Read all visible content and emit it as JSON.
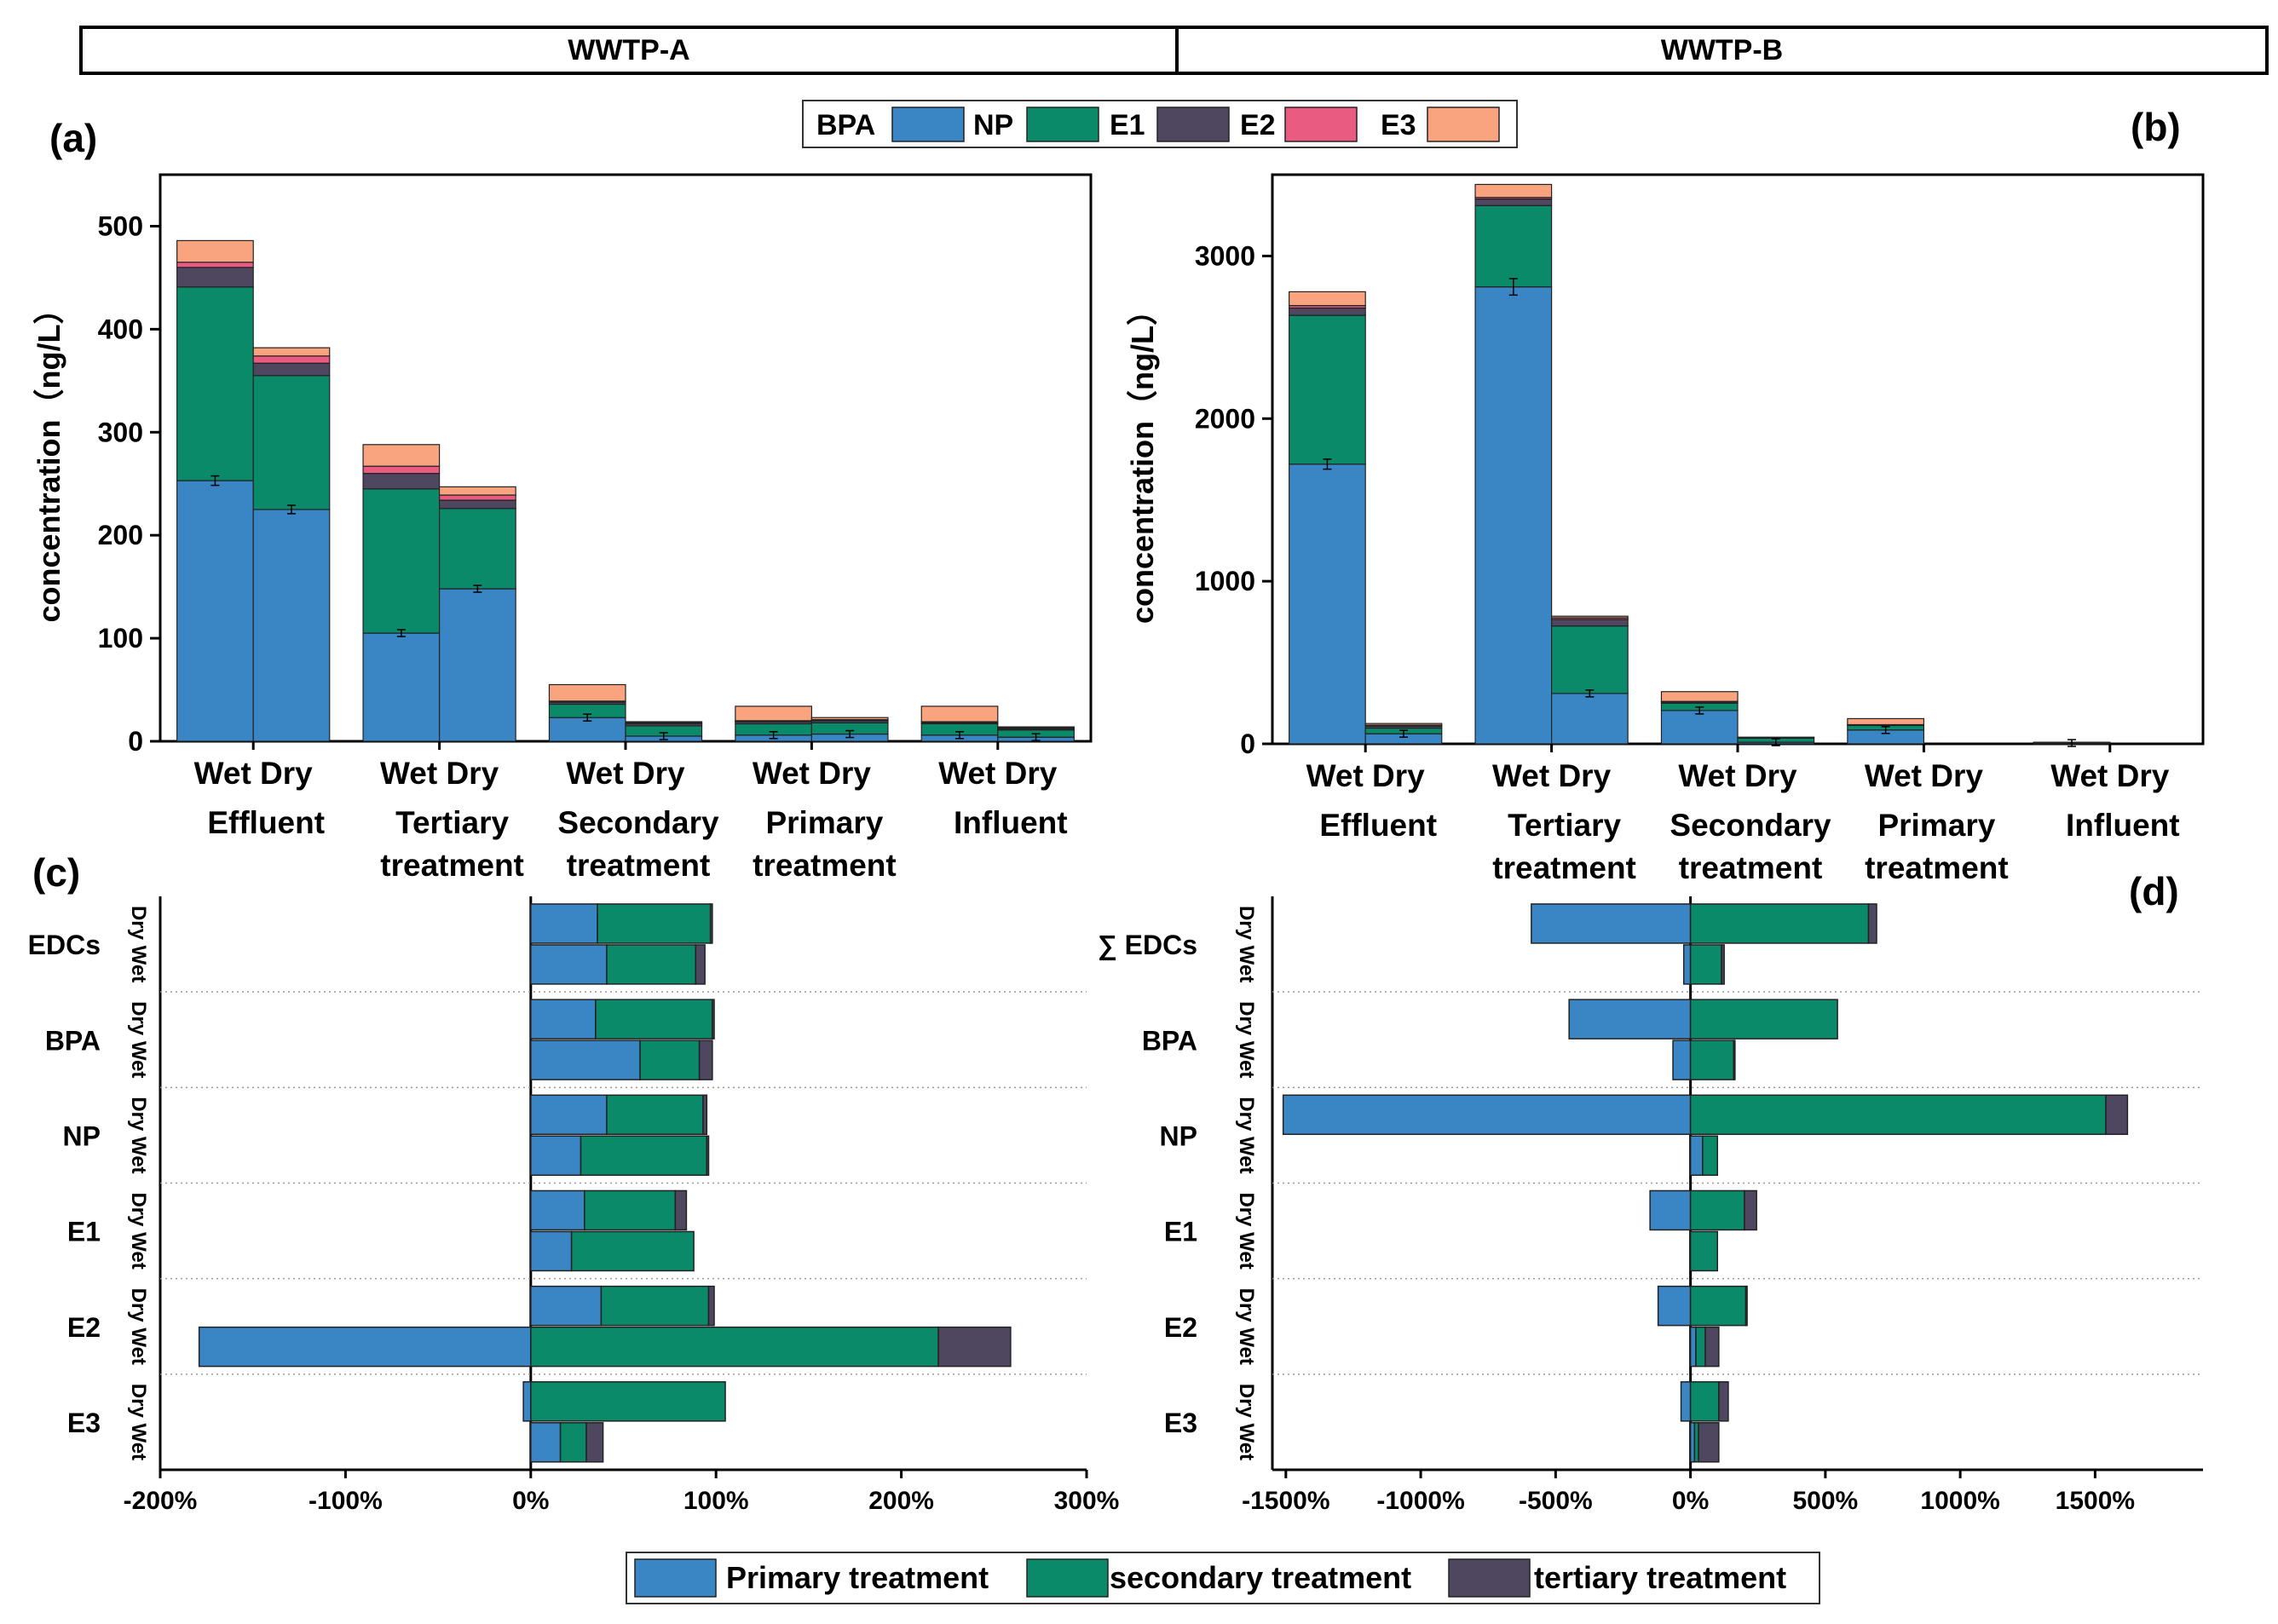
{
  "header": {
    "left": "WWTP-A",
    "right": "WWTP-B"
  },
  "colors": {
    "BPA": "#3a85c3",
    "NP": "#0b8a6a",
    "E1": "#4f4660",
    "E2": "#e95b80",
    "E3": "#f9a47f",
    "primary": "#3a85c3",
    "secondary": "#0b8a6a",
    "tertiary": "#4f4660"
  },
  "legend_top": [
    "BPA",
    "NP",
    "E1",
    "E2",
    "E3"
  ],
  "legend_bottom": [
    "Primary treatment",
    "secondary treatment",
    "tertiary treatment"
  ],
  "chart_data": [
    {
      "panel": "(a)",
      "type": "bar",
      "stacked": true,
      "ylabel": "concentration（ng/L）",
      "ylim": [
        0,
        550
      ],
      "yticks": [
        0,
        100,
        200,
        300,
        400,
        500
      ],
      "stages": [
        "Effluent",
        "Tertiary treatment",
        "Secondary treatment",
        "Primary treatment",
        "Influent"
      ],
      "seasons": [
        "Wet",
        "Dry"
      ],
      "series": [
        "BPA",
        "NP",
        "E1",
        "E2",
        "E3"
      ],
      "values": [
        [
          [
            253,
            188,
            19,
            5,
            21
          ],
          [
            225,
            130,
            12,
            7,
            8
          ]
        ],
        [
          [
            105,
            140,
            15,
            7,
            21
          ],
          [
            148,
            78,
            8,
            5,
            8
          ]
        ],
        [
          [
            23,
            13,
            2,
            1,
            16
          ],
          [
            5,
            10,
            2,
            1,
            1
          ]
        ],
        [
          [
            6,
            11,
            2,
            1,
            14
          ],
          [
            7,
            11,
            2,
            1,
            2
          ]
        ],
        [
          [
            6,
            11,
            1,
            1,
            15
          ],
          [
            4,
            7,
            1,
            1,
            1
          ]
        ]
      ]
    },
    {
      "panel": "(b)",
      "type": "bar",
      "stacked": true,
      "ylabel": "concentration（ng/L）",
      "ylim": [
        0,
        3500
      ],
      "yticks": [
        0,
        1000,
        2000,
        3000
      ],
      "stages": [
        "Effluent",
        "Tertiary treatment",
        "Secondary treatment",
        "Primary treatment",
        "Influent"
      ],
      "seasons": [
        "Wet",
        "Dry"
      ],
      "series": [
        "BPA",
        "NP",
        "E1",
        "E2",
        "E3"
      ],
      "values": [
        [
          [
            1720,
            915,
            45,
            15,
            85
          ],
          [
            62,
            35,
            12,
            6,
            10
          ]
        ],
        [
          [
            2810,
            500,
            40,
            10,
            80
          ],
          [
            310,
            415,
            40,
            10,
            10
          ]
        ],
        [
          [
            205,
            45,
            8,
            3,
            60
          ],
          [
            10,
            25,
            3,
            1,
            2
          ]
        ],
        [
          [
            85,
            28,
            3,
            2,
            37
          ],
          [
            0,
            0,
            0,
            0,
            0
          ]
        ],
        [
          [
            5,
            3,
            1,
            0,
            1
          ],
          [
            0,
            0,
            0,
            0,
            0
          ]
        ]
      ]
    },
    {
      "panel": "(c)",
      "type": "bar",
      "orientation": "horizontal",
      "stacked": true,
      "xlim": [
        -2.0,
        3.0
      ],
      "xticks": [
        -2,
        -1,
        0,
        1,
        2,
        3
      ],
      "xtick_labels": [
        "-200%",
        "-100%",
        "0%",
        "100%",
        "200%",
        "300%"
      ],
      "categories": [
        "EDCs",
        "BPA",
        "NP",
        "E1",
        "E2",
        "E3"
      ],
      "row_labels": [
        "Dry",
        "Wet"
      ],
      "series": [
        "primary",
        "secondary",
        "tertiary"
      ],
      "values": [
        [
          [
            0.36,
            0.61,
            0.01
          ],
          [
            0.41,
            0.48,
            0.05
          ]
        ],
        [
          [
            0.35,
            0.63,
            0.01
          ],
          [
            0.59,
            0.32,
            0.07
          ]
        ],
        [
          [
            0.41,
            0.52,
            0.02
          ],
          [
            0.27,
            0.68,
            0.01
          ]
        ],
        [
          [
            0.29,
            0.49,
            0.06
          ],
          [
            0.22,
            0.66,
            0.0
          ]
        ],
        [
          [
            0.38,
            0.58,
            0.03
          ],
          [
            -1.79,
            2.2,
            0.39
          ]
        ],
        [
          [
            -0.04,
            1.05,
            0.0
          ],
          [
            0.16,
            0.14,
            0.09
          ]
        ]
      ]
    },
    {
      "panel": "(d)",
      "type": "bar",
      "orientation": "horizontal",
      "stacked": true,
      "xlim": [
        -15.5,
        19.0
      ],
      "xticks": [
        -15,
        -10,
        -5,
        0,
        5,
        10,
        15
      ],
      "xtick_labels": [
        "-1500%",
        "-1000%",
        "-500%",
        "0%",
        "500%",
        "1000%",
        "1500%"
      ],
      "categories": [
        "∑ EDCs",
        "BPA",
        "NP",
        "E1",
        "E2",
        "E3"
      ],
      "row_labels": [
        "Dry",
        "Wet"
      ],
      "series": [
        "primary",
        "secondary",
        "tertiary"
      ],
      "values": [
        [
          [
            -5.9,
            6.6,
            0.3
          ],
          [
            -0.25,
            1.15,
            0.1
          ]
        ],
        [
          [
            -4.5,
            5.45,
            0.0
          ],
          [
            -0.65,
            1.6,
            0.05
          ]
        ],
        [
          [
            -15.1,
            15.4,
            0.8
          ],
          [
            0.45,
            0.55,
            0.0
          ]
        ],
        [
          [
            -1.5,
            2.0,
            0.45
          ],
          [
            0.0,
            1.0,
            0.0
          ]
        ],
        [
          [
            -1.2,
            2.05,
            0.05
          ],
          [
            0.2,
            0.35,
            0.5
          ]
        ],
        [
          [
            -0.35,
            1.05,
            0.35
          ],
          [
            0.15,
            0.15,
            0.75
          ]
        ]
      ]
    }
  ],
  "panel_labels": {
    "a": "(a)",
    "b": "(b)",
    "c": "(c)",
    "d": "(d)"
  }
}
